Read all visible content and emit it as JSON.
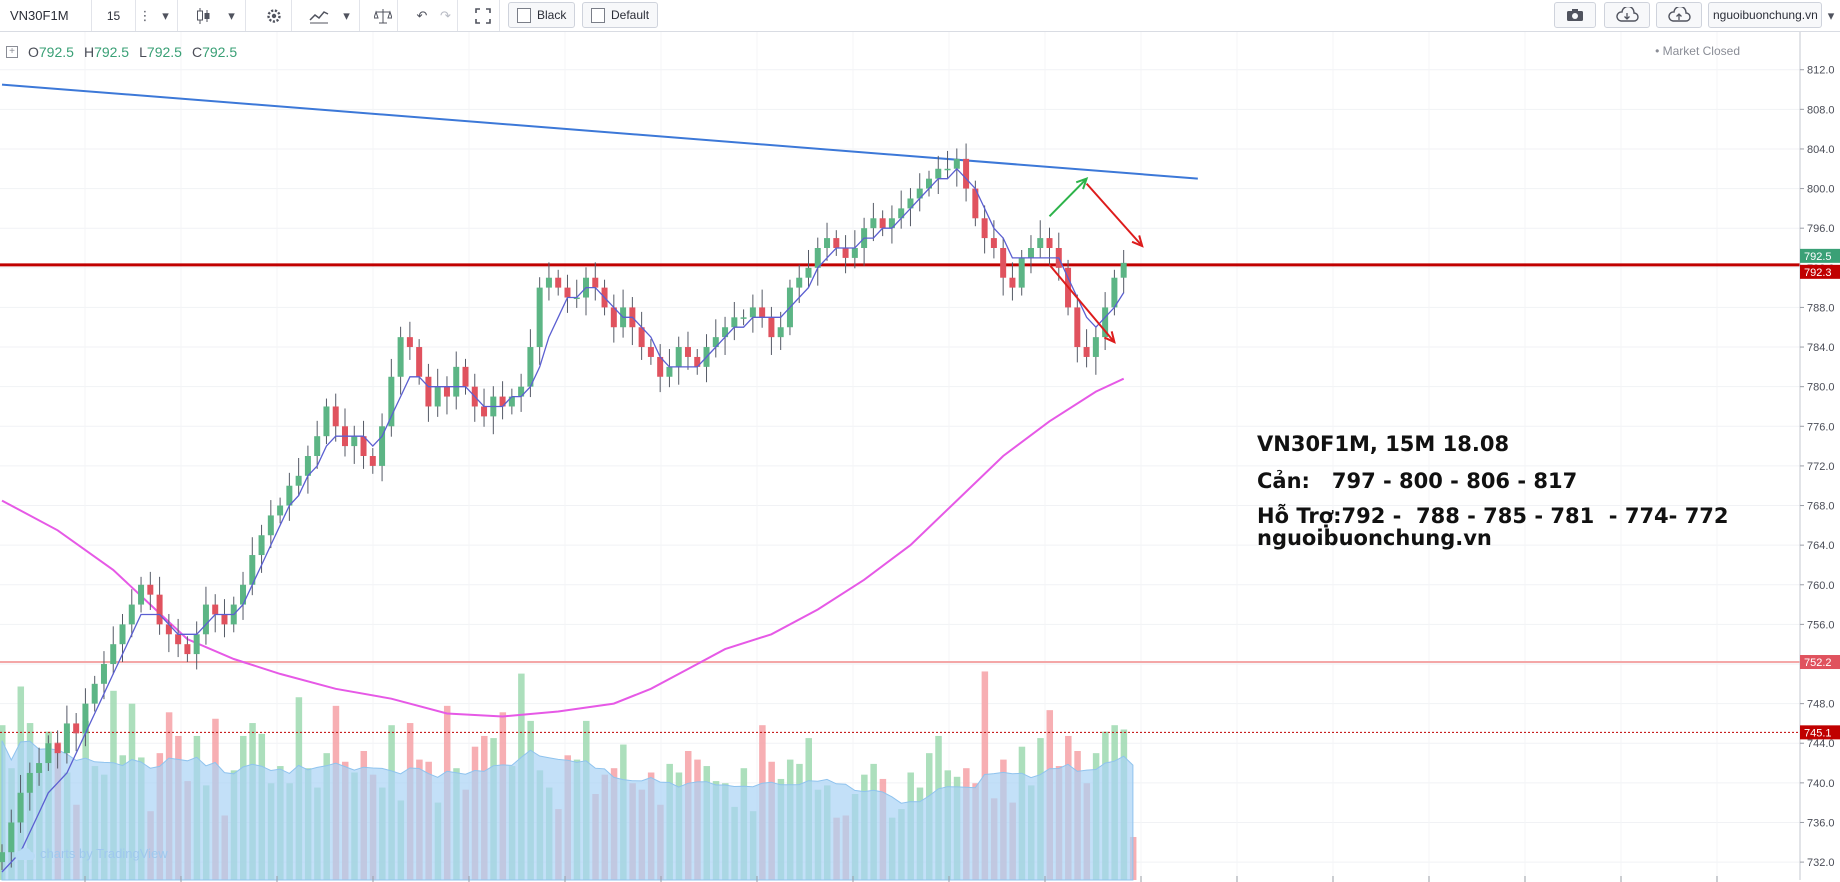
{
  "toolbar": {
    "symbol": "VN30F1M",
    "interval": "15",
    "style_black": "Black",
    "template_default": "Default",
    "site": "nguoibuonchung.vn"
  },
  "ohlc": {
    "o_label": "O",
    "o": "792.5",
    "h_label": "H",
    "h": "792.5",
    "l_label": "L",
    "l": "792.5",
    "c_label": "C",
    "c": "792.5"
  },
  "status": "Market Closed",
  "annotation": {
    "line1": "VN30F1M, 15M  18.08",
    "line2": "Cản:   797 - 800 - 806 - 817",
    "line3": "Hỗ Trợ:792 -  788 - 785 - 781  - 774- 772",
    "line4": "nguoibuonchung.vn"
  },
  "watermark": "charts by TradingView",
  "colors": {
    "up": "#5cb585",
    "down": "#e0525e",
    "ma_short": "#5b5fd1",
    "ma_long": "#e659e6",
    "trendline": "#3c78d8",
    "resistance": "#c00000",
    "support": "#f4a7a7",
    "volume_ma": "#a9d3f5"
  },
  "chart_data": {
    "type": "candlestick",
    "symbol": "VN30F1M",
    "interval": "15",
    "ylim": [
      731,
      815
    ],
    "y_ticks": [
      812.0,
      808.0,
      804.0,
      800.0,
      796.0,
      792.0,
      788.0,
      784.0,
      780.0,
      776.0,
      772.0,
      768.0,
      764.0,
      760.0,
      756.0,
      752.0,
      748.0,
      744.0,
      740.0,
      736.0,
      732.0
    ],
    "price_labels": [
      {
        "value": 792.5,
        "text": "792.5",
        "color": "#3aa076"
      },
      {
        "value": 792.3,
        "text": "792.3",
        "color": "#c00000"
      },
      {
        "value": 752.2,
        "text": "752.2",
        "color": "#e0525e"
      },
      {
        "value": 745.1,
        "text": "745.1",
        "color": "#c00000"
      }
    ],
    "horizontal_lines": [
      {
        "value": 792.3,
        "style": "solid",
        "color": "#c00000"
      },
      {
        "value": 752.2,
        "style": "solid",
        "color": "#f4a7a7"
      },
      {
        "value": 745.1,
        "style": "dotted",
        "color": "#c00000"
      }
    ],
    "trendline": {
      "from": [
        0,
        810.5
      ],
      "to": [
        129,
        801.0
      ]
    },
    "arrows": [
      {
        "from": [
          113,
          797.2
        ],
        "to": [
          117,
          801.0
        ],
        "color": "#2db34a"
      },
      {
        "from": [
          117,
          800.5
        ],
        "to": [
          123,
          794.2
        ],
        "color": "#dd1c1c"
      },
      {
        "from": [
          113,
          792.3
        ],
        "to": [
          120,
          784.5
        ],
        "color": "#dd1c1c"
      }
    ],
    "closes": [
      733,
      736,
      739,
      741,
      742,
      744,
      743,
      746,
      745,
      748,
      750,
      752,
      754,
      756,
      758,
      760,
      759,
      756,
      755,
      754,
      753,
      755,
      758,
      757,
      756,
      758,
      760,
      763,
      765,
      767,
      768,
      770,
      771,
      773,
      775,
      778,
      776,
      774,
      775,
      773,
      772,
      776,
      781,
      785,
      784,
      781,
      778,
      780,
      779,
      782,
      780,
      778,
      777,
      779,
      778,
      779,
      780,
      784,
      790,
      791,
      790,
      789,
      789,
      791,
      790,
      788,
      786,
      788,
      786,
      784,
      783,
      781,
      782,
      784,
      783,
      782,
      784,
      785,
      786,
      787,
      787,
      788,
      787,
      785,
      786,
      790,
      791,
      792,
      794,
      795,
      794,
      793,
      794,
      796,
      797,
      796,
      797,
      798,
      799,
      800,
      801,
      802,
      802,
      803,
      800,
      797,
      795,
      794,
      791,
      790,
      793,
      794,
      795,
      794,
      792,
      788,
      784,
      783,
      785,
      788,
      791,
      792.5
    ],
    "ma_short": [
      731,
      732,
      733,
      735,
      737,
      739,
      740,
      741,
      743,
      745,
      747,
      749,
      751,
      753,
      755,
      757,
      757,
      757,
      756,
      755,
      755,
      755,
      756,
      757,
      757,
      757,
      758,
      760,
      762,
      764,
      766,
      768,
      769,
      771,
      772,
      774,
      775,
      775,
      775,
      775,
      774,
      775,
      777,
      779,
      781,
      781,
      780,
      780,
      780,
      780,
      780,
      779,
      778,
      778,
      778,
      779,
      779,
      780,
      782,
      785,
      787,
      789,
      789,
      790,
      790,
      789,
      788,
      787,
      787,
      786,
      785,
      783,
      782,
      782,
      782,
      782,
      783,
      784,
      785,
      786,
      786,
      787,
      787,
      787,
      787,
      788,
      789,
      790,
      792,
      793,
      794,
      794,
      794,
      795,
      795,
      796,
      796,
      797,
      798,
      799,
      800,
      801,
      801,
      802,
      801,
      800,
      798,
      796,
      795,
      793,
      793,
      793,
      793,
      793,
      793,
      791,
      789,
      787,
      786,
      787,
      788,
      789.5
    ],
    "ma_long": [
      [
        0,
        768.5
      ],
      [
        6,
        765.5
      ],
      [
        12,
        761.5
      ],
      [
        16,
        758.0
      ],
      [
        20,
        754.5
      ],
      [
        25,
        752.5
      ],
      [
        30,
        751.0
      ],
      [
        36,
        749.5
      ],
      [
        42,
        748.5
      ],
      [
        48,
        747.0
      ],
      [
        54,
        746.7
      ],
      [
        60,
        747.2
      ],
      [
        66,
        748.0
      ],
      [
        70,
        749.5
      ],
      [
        74,
        751.5
      ],
      [
        78,
        753.5
      ],
      [
        83,
        755.0
      ],
      [
        88,
        757.5
      ],
      [
        93,
        760.5
      ],
      [
        98,
        764.0
      ],
      [
        103,
        768.5
      ],
      [
        108,
        773.0
      ],
      [
        113,
        776.5
      ],
      [
        118,
        779.5
      ],
      [
        121,
        780.8
      ]
    ],
    "volume_relative": [
      0.72,
      0.52,
      0.9,
      0.73,
      0.51,
      0.69,
      0.64,
      0.5,
      0.35,
      0.74,
      0.53,
      0.49,
      0.88,
      0.58,
      0.82,
      0.57,
      0.32,
      0.59,
      0.78,
      0.67,
      0.46,
      0.67,
      0.44,
      0.75,
      0.3,
      0.51,
      0.67,
      0.73,
      0.68,
      0.45,
      0.53,
      0.45,
      0.85,
      0.52,
      0.43,
      0.59,
      0.81,
      0.55,
      0.5,
      0.6,
      0.49,
      0.43,
      0.72,
      0.37,
      0.73,
      0.56,
      0.55,
      0.36,
      0.81,
      0.52,
      0.42,
      0.62,
      0.67,
      0.66,
      0.78,
      0.53,
      0.96,
      0.74,
      0.51,
      0.43,
      0.33,
      0.58,
      0.56,
      0.74,
      0.4,
      0.49,
      0.52,
      0.63,
      0.45,
      0.42,
      0.5,
      0.35,
      0.54,
      0.5,
      0.6,
      0.56,
      0.53,
      0.46,
      0.45,
      0.34,
      0.52,
      0.32,
      0.72,
      0.55,
      0.47,
      0.56,
      0.54,
      0.66,
      0.42,
      0.44,
      0.29,
      0.3,
      0.4,
      0.49,
      0.54,
      0.47,
      0.29,
      0.33,
      0.5,
      0.43,
      0.59,
      0.67,
      0.51,
      0.48,
      0.52,
      0.45,
      0.97,
      0.38,
      0.56,
      0.36,
      0.62,
      0.44,
      0.66,
      0.79,
      0.53,
      0.67,
      0.6,
      0.45,
      0.59,
      0.69,
      0.72,
      0.7,
      0.2
    ]
  }
}
